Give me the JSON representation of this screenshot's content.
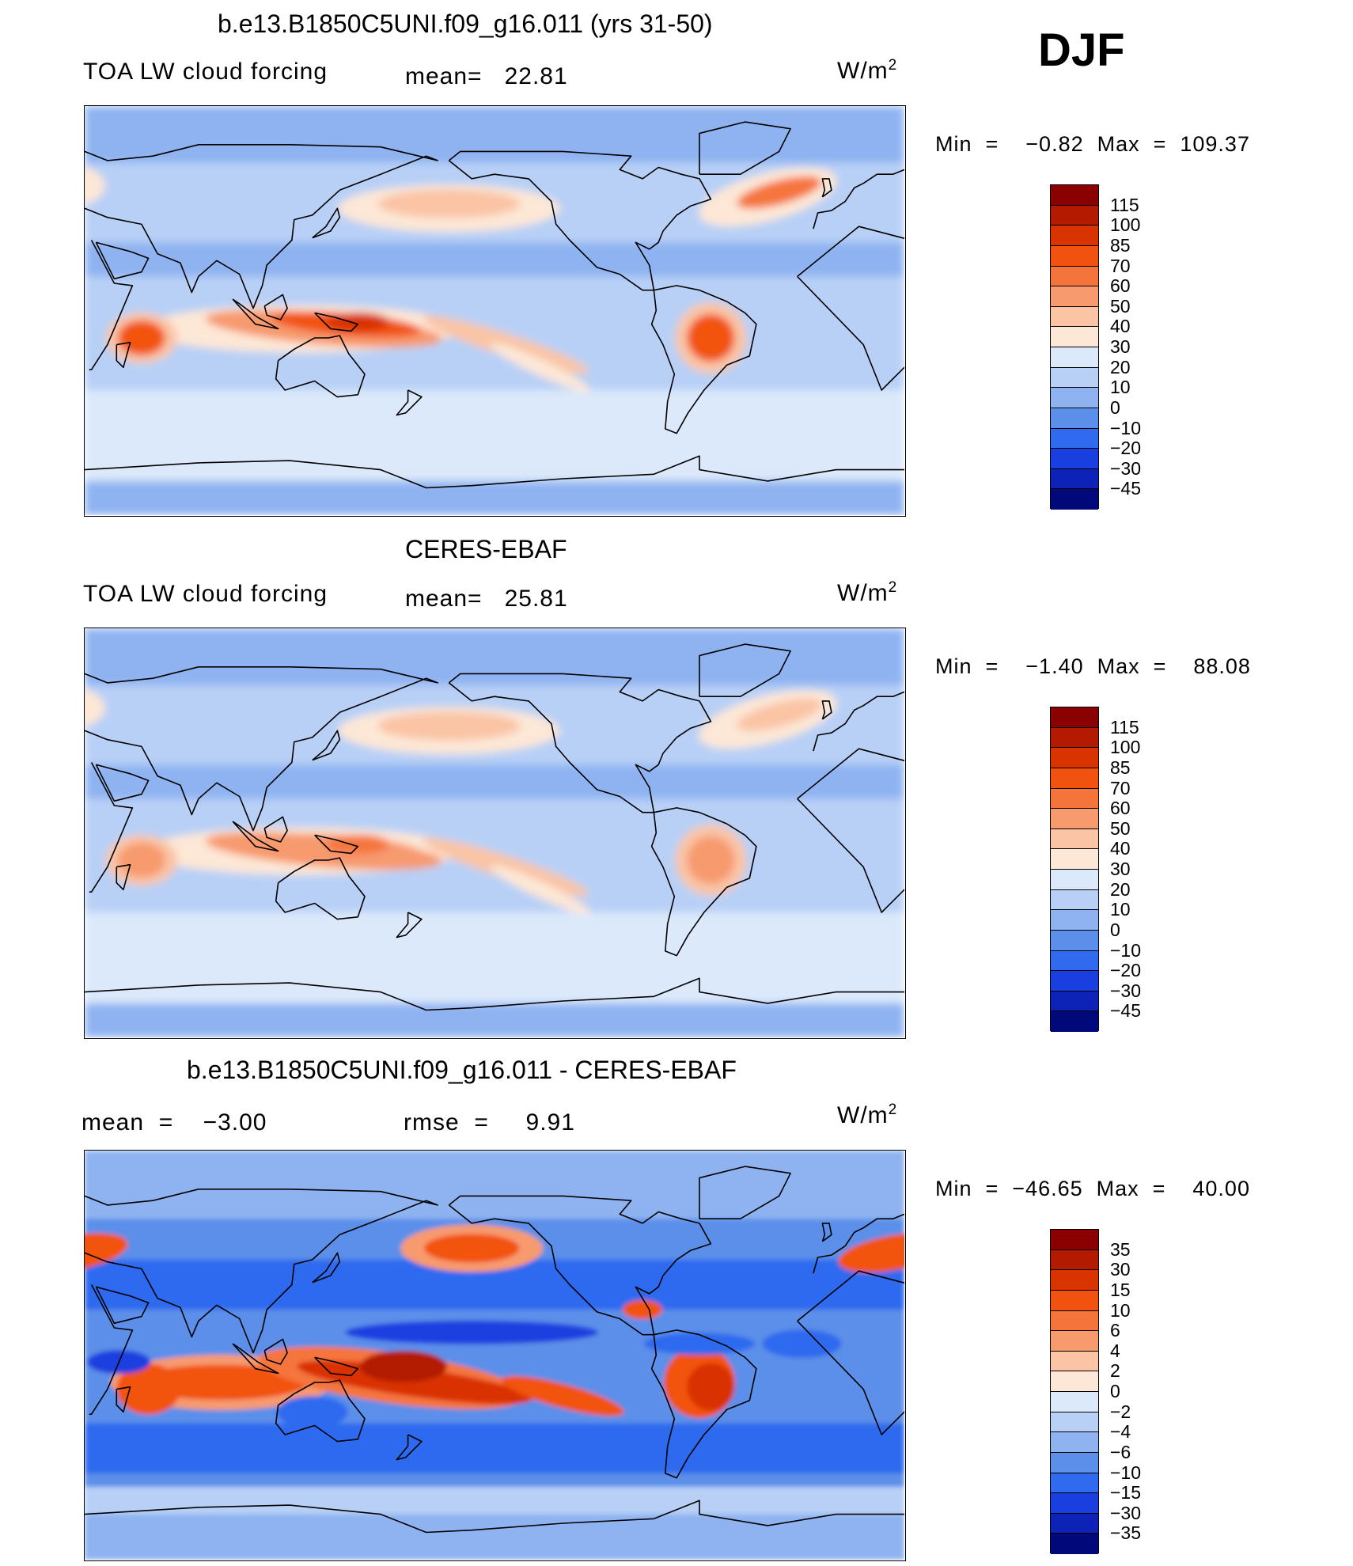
{
  "header": {
    "season": "DJF"
  },
  "panels": [
    {
      "title": "b.e13.B1850C5UNI.f09_g16.011 (yrs 31-50)",
      "left_label": "TOA LW cloud forcing",
      "mean_text": "mean=   22.81",
      "units": "W/m",
      "units_sup": "2",
      "minmax": "Min  =    −0.82  Max  =  109.37",
      "colorbar_ticks": [
        "115",
        "100",
        "85",
        "70",
        "60",
        "50",
        "40",
        "30",
        "20",
        "10",
        "0",
        "−10",
        "−20",
        "−30",
        "−45"
      ],
      "field": "model"
    },
    {
      "title": "CERES-EBAF",
      "left_label": "TOA LW cloud forcing",
      "mean_text": "mean=   25.81",
      "units": "W/m",
      "units_sup": "2",
      "minmax": "Min  =    −1.40  Max  =    88.08",
      "colorbar_ticks": [
        "115",
        "100",
        "85",
        "70",
        "60",
        "50",
        "40",
        "30",
        "20",
        "10",
        "0",
        "−10",
        "−20",
        "−30",
        "−45"
      ],
      "field": "obs"
    },
    {
      "title": "b.e13.B1850C5UNI.f09_g16.011 - CERES-EBAF",
      "left_label": "mean  =    −3.00",
      "mean_text": "rmse  =     9.91",
      "units": "W/m",
      "units_sup": "2",
      "minmax": "Min  =  −46.65  Max  =    40.00",
      "colorbar_ticks": [
        "35",
        "30",
        "15",
        "10",
        "6",
        "4",
        "2",
        "0",
        "−2",
        "−4",
        "−6",
        "−10",
        "−15",
        "−30",
        "−35"
      ],
      "field": "diff"
    }
  ],
  "colors": {
    "colorbar": [
      "#8b0000",
      "#b31a00",
      "#d93300",
      "#f2520f",
      "#f5743c",
      "#f79a6e",
      "#fac4a5",
      "#fde7d6",
      "#dce9fb",
      "#b8d0f6",
      "#8fb3f1",
      "#5c8fe9",
      "#2f6aef",
      "#1a3fe0",
      "#0d23b8",
      "#00087a"
    ]
  }
}
